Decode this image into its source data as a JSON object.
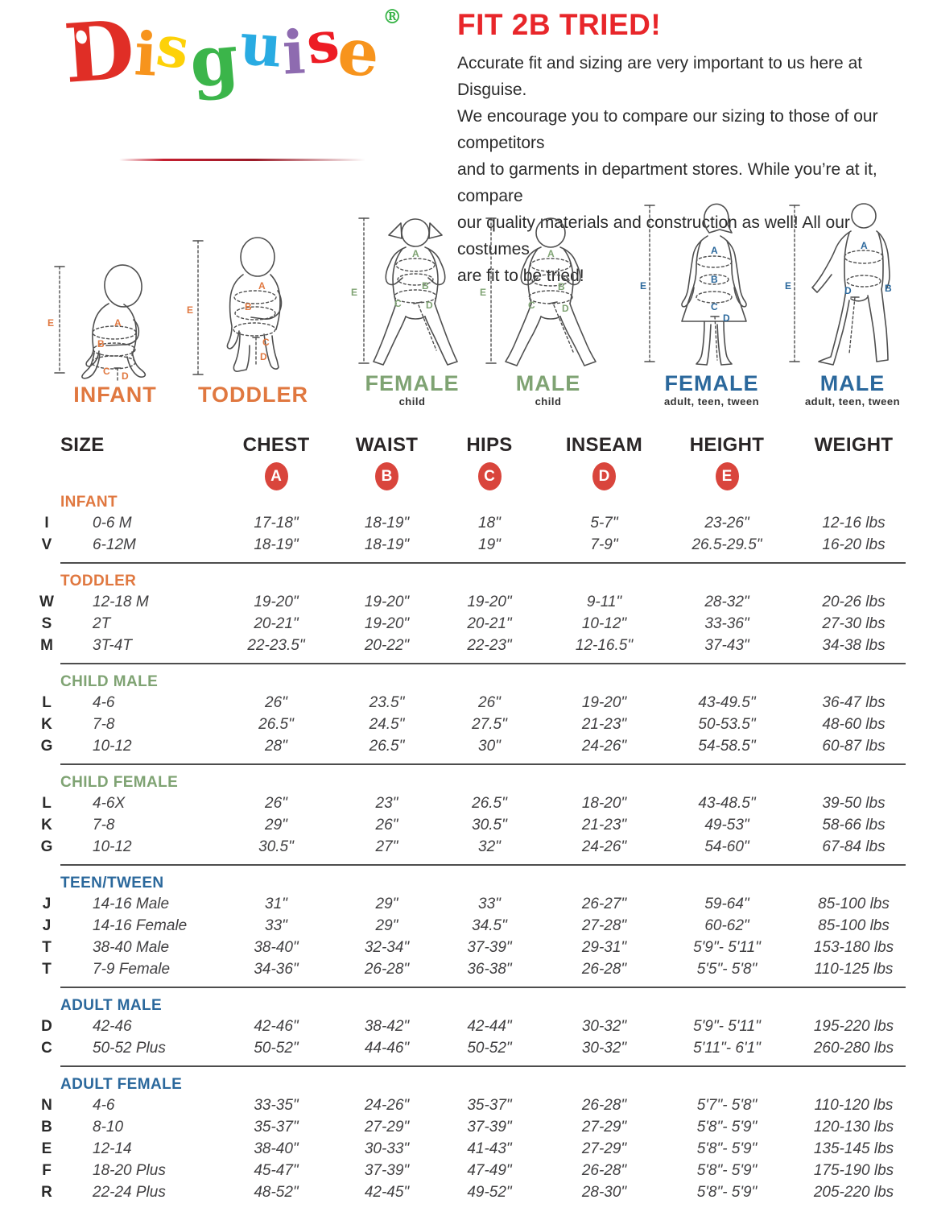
{
  "logo": {
    "letters": [
      {
        "ch": "D",
        "color": "#e02e26"
      },
      {
        "ch": "i",
        "color": "#f7941d"
      },
      {
        "ch": "s",
        "color": "#fdd108"
      },
      {
        "ch": "g",
        "color": "#3bb54a"
      },
      {
        "ch": "u",
        "color": "#29abe2"
      },
      {
        "ch": "i",
        "color": "#8e6bb0"
      },
      {
        "ch": "s",
        "color": "#ed1c24"
      },
      {
        "ch": "e",
        "color": "#f7941d"
      }
    ],
    "registered": "®"
  },
  "header": {
    "title": "FIT 2B TRIED!",
    "intro_lines": [
      "Accurate fit and sizing are very important to us here at Disguise.",
      "We encourage you to compare our sizing to those of our competitors",
      "and to garments in department stores. While you’re at it, compare",
      "our quality materials and construction as well! All our costumes",
      "are fit to be tried!"
    ],
    "title_color": "#e8262a"
  },
  "figures": {
    "measure_letters": {
      "A": "A",
      "B": "B",
      "C": "C",
      "D": "D",
      "E": "E"
    },
    "items": [
      {
        "label": "INFANT",
        "sublabel": "",
        "theme": "orange"
      },
      {
        "label": "TODDLER",
        "sublabel": "",
        "theme": "orange"
      },
      {
        "label": "FEMALE",
        "sublabel": "child",
        "theme": "green"
      },
      {
        "label": "MALE",
        "sublabel": "child",
        "theme": "green"
      },
      {
        "label": "FEMALE",
        "sublabel": "adult, teen, tween",
        "theme": "blue"
      },
      {
        "label": "MALE",
        "sublabel": "adult, teen, tween",
        "theme": "blue"
      }
    ]
  },
  "table": {
    "columns": [
      "SIZE",
      "CHEST",
      "WAIST",
      "HIPS",
      "INSEAM",
      "HEIGHT",
      "WEIGHT"
    ],
    "badges": [
      "A",
      "B",
      "C",
      "D",
      "E"
    ],
    "badge_color": "#D9453C",
    "sections": [
      {
        "name": "INFANT",
        "theme": "orange",
        "rows": [
          [
            "I",
            "0-6 M",
            "17-18\"",
            "18-19\"",
            "18\"",
            "5-7\"",
            "23-26\"",
            "12-16 lbs"
          ],
          [
            "V",
            "6-12M",
            "18-19\"",
            "18-19\"",
            "19\"",
            "7-9\"",
            "26.5-29.5\"",
            "16-20 lbs"
          ]
        ]
      },
      {
        "name": "TODDLER",
        "theme": "orange",
        "rows": [
          [
            "W",
            "12-18 M",
            "19-20\"",
            "19-20\"",
            "19-20\"",
            "9-11\"",
            "28-32\"",
            "20-26 lbs"
          ],
          [
            "S",
            "2T",
            "20-21\"",
            "19-20\"",
            "20-21\"",
            "10-12\"",
            "33-36\"",
            "27-30 lbs"
          ],
          [
            "M",
            "3T-4T",
            "22-23.5\"",
            "20-22\"",
            "22-23\"",
            "12-16.5\"",
            "37-43\"",
            "34-38 lbs"
          ]
        ]
      },
      {
        "name": "CHILD MALE",
        "theme": "green",
        "rows": [
          [
            "L",
            "4-6",
            "26\"",
            "23.5\"",
            "26\"",
            "19-20\"",
            "43-49.5\"",
            "36-47 lbs"
          ],
          [
            "K",
            "7-8",
            "26.5\"",
            "24.5\"",
            "27.5\"",
            "21-23\"",
            "50-53.5\"",
            "48-60 lbs"
          ],
          [
            "G",
            "10-12",
            "28\"",
            "26.5\"",
            "30\"",
            "24-26\"",
            "54-58.5\"",
            "60-87 lbs"
          ]
        ]
      },
      {
        "name": "CHILD FEMALE",
        "theme": "green",
        "rows": [
          [
            "L",
            "4-6X",
            "26\"",
            "23\"",
            "26.5\"",
            "18-20\"",
            "43-48.5\"",
            "39-50 lbs"
          ],
          [
            "K",
            "7-8",
            "29\"",
            "26\"",
            "30.5\"",
            "21-23\"",
            "49-53\"",
            "58-66 lbs"
          ],
          [
            "G",
            "10-12",
            "30.5\"",
            "27\"",
            "32\"",
            "24-26\"",
            "54-60\"",
            "67-84 lbs"
          ]
        ]
      },
      {
        "name": "TEEN/TWEEN",
        "theme": "blue",
        "rows": [
          [
            "J",
            "14-16 Male",
            "31\"",
            "29\"",
            "33\"",
            "26-27\"",
            "59-64\"",
            "85-100 lbs"
          ],
          [
            "J",
            "14-16 Female",
            "33\"",
            "29\"",
            "34.5\"",
            "27-28\"",
            "60-62\"",
            "85-100 lbs"
          ],
          [
            "T",
            "38-40 Male",
            "38-40\"",
            "32-34\"",
            "37-39\"",
            "29-31\"",
            "5'9\"- 5'11\"",
            "153-180 lbs"
          ],
          [
            "T",
            "7-9 Female",
            "34-36\"",
            "26-28\"",
            "36-38\"",
            "26-28\"",
            "5'5\"- 5'8\"",
            "110-125 lbs"
          ]
        ]
      },
      {
        "name": "ADULT MALE",
        "theme": "blue",
        "rows": [
          [
            "D",
            "42-46",
            "42-46\"",
            "38-42\"",
            "42-44\"",
            "30-32\"",
            "5'9\"- 5'11\"",
            "195-220 lbs"
          ],
          [
            "C",
            "50-52 Plus",
            "50-52\"",
            "44-46\"",
            "50-52\"",
            "30-32\"",
            "5'11\"- 6'1\"",
            "260-280 lbs"
          ]
        ]
      },
      {
        "name": "ADULT FEMALE",
        "theme": "blue",
        "rows": [
          [
            "N",
            "4-6",
            "33-35\"",
            "24-26\"",
            "35-37\"",
            "26-28\"",
            "5'7\"- 5'8\"",
            "110-120 lbs"
          ],
          [
            "B",
            "8-10",
            "35-37\"",
            "27-29\"",
            "37-39\"",
            "27-29\"",
            "5'8\"- 5'9\"",
            "120-130 lbs"
          ],
          [
            "E",
            "12-14",
            "38-40\"",
            "30-33\"",
            "41-43\"",
            "27-29\"",
            "5'8\"- 5'9\"",
            "135-145 lbs"
          ],
          [
            "F",
            "18-20 Plus",
            "45-47\"",
            "37-39\"",
            "47-49\"",
            "26-28\"",
            "5'8\"- 5'9\"",
            "175-190 lbs"
          ],
          [
            "R",
            "22-24 Plus",
            "48-52\"",
            "42-45\"",
            "49-52\"",
            "28-30\"",
            "5'8\"- 5'9\"",
            "205-220 lbs"
          ]
        ]
      }
    ]
  },
  "colors": {
    "accent_red": "#e8262a",
    "badge_red": "#D9453C",
    "orange": "#E07840",
    "green": "#7FA373",
    "blue": "#2B689C"
  }
}
